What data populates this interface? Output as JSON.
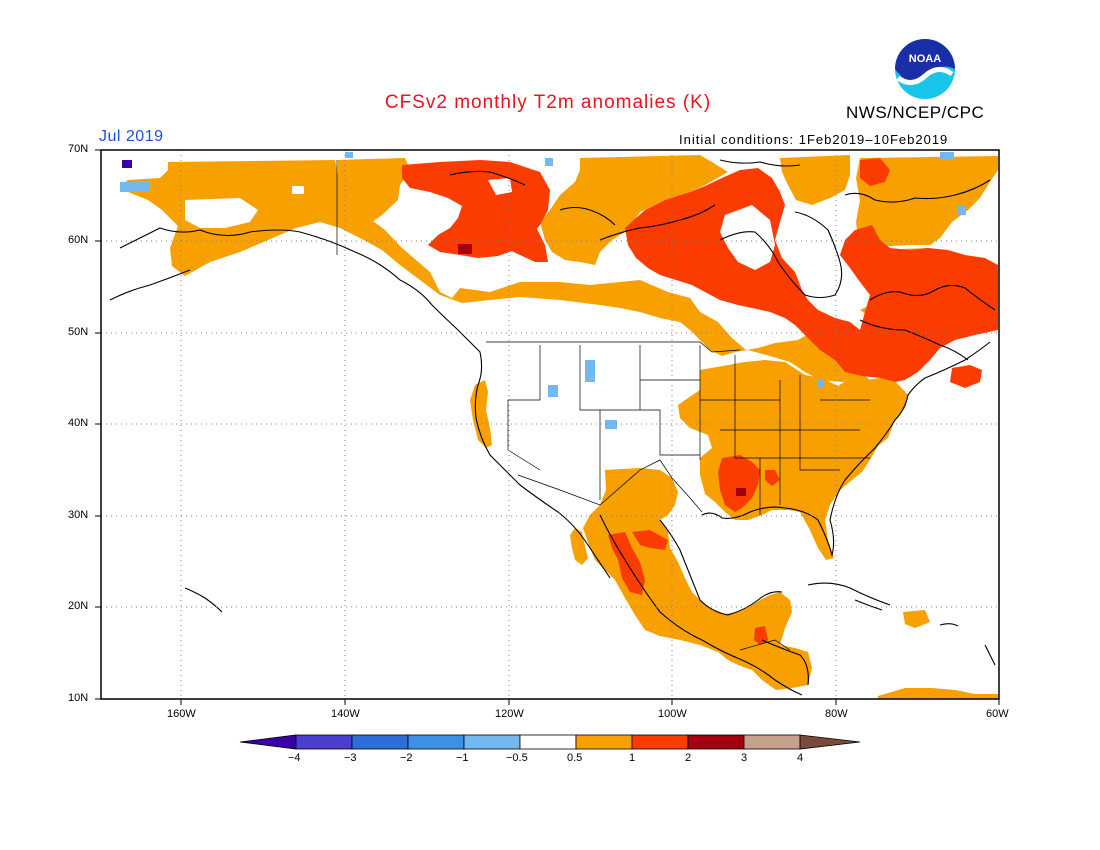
{
  "header": {
    "title": "CFSv2 monthly T2m anomalies (K)",
    "agency": "NWS/NCEP/CPC",
    "logo_text": "NOAA",
    "valid_month": "Jul 2019",
    "initial_conditions": "Initial conditions:  1Feb2019–10Feb2019"
  },
  "map": {
    "region": "North America",
    "lat_labels": [
      "70N",
      "60N",
      "50N",
      "40N",
      "30N",
      "20N",
      "10N"
    ],
    "lon_labels": [
      "160W",
      "140W",
      "120W",
      "100W",
      "80W",
      "60W"
    ],
    "extent": {
      "lon": [
        -170,
        -60
      ],
      "lat": [
        10,
        70
      ]
    },
    "grid": "dotted"
  },
  "colorbar": {
    "labels": [
      "−4",
      "−3",
      "−2",
      "−1",
      "−0.5",
      "0.5",
      "1",
      "2",
      "3",
      "4"
    ],
    "colors": [
      "#3a00a8",
      "#4a3fd0",
      "#2d6ed8",
      "#3e8fe8",
      "#74b8f0",
      "#ffffff",
      "#f7a000",
      "#fb3c00",
      "#b5000f",
      "#c9a08c",
      "#7a4a3a"
    ]
  },
  "legend_colors": {
    "weak_warm": "#f7a000",
    "moderate_warm": "#fb3c00",
    "strong_warm": "#a5000f",
    "weak_cool": "#74b8f0",
    "cool": "#3e8fe8",
    "strong_cool": "#3a00a8"
  }
}
